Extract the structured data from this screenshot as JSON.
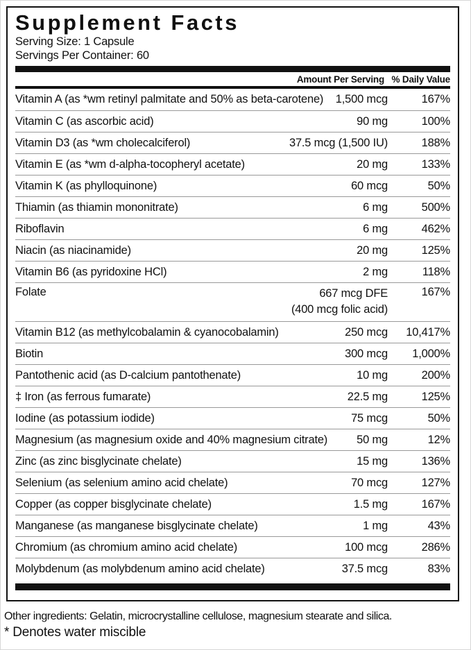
{
  "label": {
    "title": "Supplement Facts",
    "serving_size": "Serving Size: 1 Capsule",
    "servings_per_container": "Servings Per Container: 60",
    "columns": {
      "amount": "Amount Per Serving",
      "daily_value": "% Daily Value"
    },
    "rows": [
      {
        "name": "Vitamin A (as *wm retinyl palmitate and 50% as beta-carotene)",
        "amount": "1,500 mcg",
        "dv": "167%"
      },
      {
        "name": "Vitamin C (as ascorbic acid)",
        "amount": "90 mg",
        "dv": "100%"
      },
      {
        "name": "Vitamin D3 (as *wm cholecalciferol)",
        "amount": "37.5 mcg (1,500 IU)",
        "dv": "188%"
      },
      {
        "name": "Vitamin E (as *wm d-alpha-tocopheryl acetate)",
        "amount": "20 mg",
        "dv": "133%"
      },
      {
        "name": "Vitamin K (as phylloquinone)",
        "amount": "60 mcg",
        "dv": "50%"
      },
      {
        "name": "Thiamin (as thiamin mononitrate)",
        "amount": "6 mg",
        "dv": "500%"
      },
      {
        "name": "Riboflavin",
        "amount": "6 mg",
        "dv": "462%"
      },
      {
        "name": "Niacin (as niacinamide)",
        "amount": "20 mg",
        "dv": "125%"
      },
      {
        "name": "Vitamin B6 (as pyridoxine HCl)",
        "amount": "2 mg",
        "dv": "118%"
      },
      {
        "name": "Folate",
        "amount": "667 mcg DFE",
        "amount_line2": "(400 mcg folic acid)",
        "dv": "167%"
      },
      {
        "name": "Vitamin B12 (as methylcobalamin & cyanocobalamin)",
        "amount": "250 mcg",
        "dv": "10,417%"
      },
      {
        "name": "Biotin",
        "amount": "300 mcg",
        "dv": "1,000%"
      },
      {
        "name": "Pantothenic acid (as D-calcium pantothenate)",
        "amount": "10 mg",
        "dv": "200%"
      },
      {
        "name": "‡ Iron (as ferrous fumarate)",
        "amount": "22.5 mg",
        "dv": "125%"
      },
      {
        "name": "Iodine (as potassium iodide)",
        "amount": "75 mcg",
        "dv": "50%"
      },
      {
        "name": "Magnesium (as magnesium oxide and 40% magnesium citrate)",
        "amount": "50 mg",
        "dv": "12%"
      },
      {
        "name": "Zinc (as zinc bisglycinate chelate)",
        "amount": "15 mg",
        "dv": "136%"
      },
      {
        "name": "Selenium (as selenium amino acid chelate)",
        "amount": "70 mcg",
        "dv": "127%"
      },
      {
        "name": "Copper (as copper bisglycinate chelate)",
        "amount": "1.5 mg",
        "dv": "167%"
      },
      {
        "name": "Manganese (as manganese bisglycinate chelate)",
        "amount": "1 mg",
        "dv": "43%"
      },
      {
        "name": "Chromium (as chromium amino acid chelate)",
        "amount": "100 mcg",
        "dv": "286%"
      },
      {
        "name": "Molybdenum (as molybdenum amino acid chelate)",
        "amount": "37.5 mcg",
        "dv": "83%"
      }
    ],
    "footer": {
      "other_ingredients": "Other ingredients: Gelatin, microcrystalline cellulose, magnesium stearate and silica.",
      "footnote": "* Denotes water miscible"
    },
    "colors": {
      "background": "#ffffff",
      "text": "#111111",
      "border": "#111111",
      "separator": "#999999"
    }
  }
}
